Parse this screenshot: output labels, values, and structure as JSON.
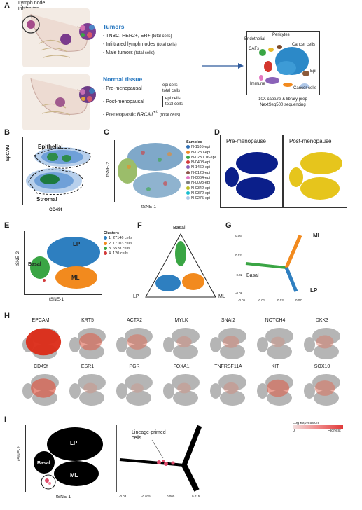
{
  "panels": {
    "A": "A",
    "B": "B",
    "C": "C",
    "D": "D",
    "E": "E",
    "F": "F",
    "G": "G",
    "H": "H",
    "I": "I"
  },
  "panelA": {
    "lymph_label_1": "Lymph node",
    "lymph_label_2": "infiltration",
    "tumors_heading": "Tumors",
    "tumor_items": [
      "- TNBC, HER2+, ER+",
      "- Infiltrated lymph nodes",
      "- Male tumors"
    ],
    "total_cells": "(total cells)",
    "normal_heading": "Normal tissue",
    "normal_items": [
      "- Pre-menopausal",
      "- Post-menopausal",
      "- Preneoplastic "
    ],
    "brca": "BRCA1",
    "brca_sup": "+/-",
    "epi_cells": "epi cells",
    "total_cells_plain": "total cells",
    "cluster_labels": {
      "endothelial": "Endothelial",
      "pericytes": "Pericytes",
      "cafs": "CAFs",
      "cancer_top": "Cancer cells",
      "epi": "Epi",
      "immune": "Immune",
      "cancer_bottom": "Cancer cells"
    },
    "caption_1": "10X capture & library prep",
    "caption_2": "NextSeq500 sequencing"
  },
  "panelB": {
    "epithelial": "Epithelial",
    "stromal": "Stromal",
    "ylabel": "EpCAM",
    "xlabel": "CD49f"
  },
  "panelC": {
    "ylabel": "tSNE-2",
    "xlabel": "tSNE-1",
    "legend_title": "Samples",
    "samples": [
      {
        "name": "N-1105-epi",
        "color": "#2e6fb5"
      },
      {
        "name": "N-0280-epi",
        "color": "#f08a24"
      },
      {
        "name": "N-0230.16-epi",
        "color": "#3aa544"
      },
      {
        "name": "N-0408-epi",
        "color": "#d33b3b"
      },
      {
        "name": "N-1469-epi",
        "color": "#8a62b8"
      },
      {
        "name": "N-0123-epi",
        "color": "#8c564b"
      },
      {
        "name": "N-0064-epi",
        "color": "#e377c2"
      },
      {
        "name": "N-0093-epi",
        "color": "#7f7f7f"
      },
      {
        "name": "N-0342-epi",
        "color": "#bcbd22"
      },
      {
        "name": "N-0372-epi",
        "color": "#17becf"
      },
      {
        "name": "N-0275-epi",
        "color": "#aec7e8"
      }
    ]
  },
  "panelD": {
    "pre": "Pre-menopause",
    "post": "Post-menopause",
    "pre_color": "#0b1f8a",
    "post_color": "#e6c51c"
  },
  "panelE": {
    "ylabel": "tSNE-2",
    "xlabel": "tSNE-1",
    "legend_title": "Clusters",
    "clusters": [
      {
        "label": "1. 27146 cells",
        "color": "#2e7fc0"
      },
      {
        "label": "2. 17103 cells",
        "color": "#f28a1e"
      },
      {
        "label": "3. 6528 cells",
        "color": "#3aa544"
      },
      {
        "label": "4. 120 cells",
        "color": "#d33b3b"
      }
    ],
    "lp": "LP",
    "basal": "Basal",
    "ml": "ML"
  },
  "panelF": {
    "basal": "Basal",
    "lp": "LP",
    "ml": "ML"
  },
  "panelG": {
    "ml": "ML",
    "basal": "Basal",
    "lp": "LP",
    "xticks": [
      "-0.05",
      "-0.01",
      "0.03",
      "0.07"
    ],
    "yticks": [
      "0.06",
      "0.02",
      "-0.02",
      "-0.06"
    ]
  },
  "panelH": {
    "row1": [
      "EPCAM",
      "KRT5",
      "ACTA2",
      "MYLK",
      "SNAI2",
      "NOTCH4",
      "DKK3"
    ],
    "row2": [
      "CD49f",
      "ESR1",
      "PGR",
      "FOXA1",
      "TNFRSF11A",
      "KIT",
      "SOX10"
    ],
    "row1_levels": [
      0.95,
      0.45,
      0.35,
      0.15,
      0.2,
      0.1,
      0.25
    ],
    "row2_levels": [
      0.55,
      0.1,
      0.05,
      0.1,
      0.15,
      0.45,
      0.35
    ]
  },
  "panelI": {
    "ylabel": "tSNE-2",
    "xlabel": "tSNE-1",
    "lp": "LP",
    "basal": "Basal",
    "ml": "ML",
    "primed": "Lineage-primed",
    "primed2": "cells",
    "legend_title": "Log expression",
    "legend_low": "0",
    "legend_high": "Highest",
    "xticks": [
      "-0.03",
      "-0.015",
      "0.000",
      "0.015"
    ]
  }
}
